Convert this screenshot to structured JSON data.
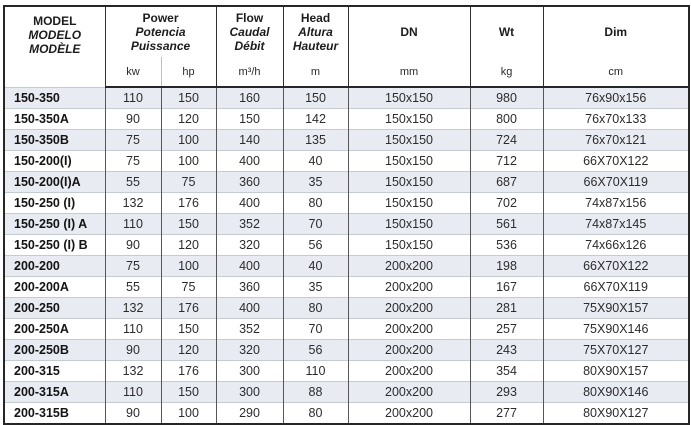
{
  "table": {
    "header": {
      "model": [
        "MODEL",
        "MODELO",
        "MODÈLE"
      ],
      "power": [
        "Power",
        "Potencia",
        "Puissance"
      ],
      "flow": [
        "Flow",
        "Caudal",
        "Débit"
      ],
      "head": [
        "Head",
        "Altura",
        "Hauteur"
      ],
      "dn": "DN",
      "wt": "Wt",
      "dim": "Dim",
      "units": {
        "kw": "kw",
        "hp": "hp",
        "flow": "m³/h",
        "head": "m",
        "dn": "mm",
        "wt": "kg",
        "dim": "cm"
      }
    },
    "columns": [
      "model",
      "kw",
      "hp",
      "flow",
      "head",
      "dn",
      "wt",
      "dim"
    ],
    "rows": [
      {
        "model": "150-350",
        "kw": "110",
        "hp": "150",
        "flow": "160",
        "head": "150",
        "dn": "150x150",
        "wt": "980",
        "dim": "76x90x156"
      },
      {
        "model": "150-350A",
        "kw": "90",
        "hp": "120",
        "flow": "150",
        "head": "142",
        "dn": "150x150",
        "wt": "800",
        "dim": "76x70x133"
      },
      {
        "model": "150-350B",
        "kw": "75",
        "hp": "100",
        "flow": "140",
        "head": "135",
        "dn": "150x150",
        "wt": "724",
        "dim": "76x70x121"
      },
      {
        "model": "150-200(I)",
        "kw": "75",
        "hp": "100",
        "flow": "400",
        "head": "40",
        "dn": "150x150",
        "wt": "712",
        "dim": "66X70X122"
      },
      {
        "model": "150-200(I)A",
        "kw": "55",
        "hp": "75",
        "flow": "360",
        "head": "35",
        "dn": "150x150",
        "wt": "687",
        "dim": "66X70X119"
      },
      {
        "model": "150-250 (I)",
        "kw": "132",
        "hp": "176",
        "flow": "400",
        "head": "80",
        "dn": "150x150",
        "wt": "702",
        "dim": "74x87x156"
      },
      {
        "model": "150-250 (I) A",
        "kw": "110",
        "hp": "150",
        "flow": "352",
        "head": "70",
        "dn": "150x150",
        "wt": "561",
        "dim": "74x87x145"
      },
      {
        "model": "150-250 (I) B",
        "kw": "90",
        "hp": "120",
        "flow": "320",
        "head": "56",
        "dn": "150x150",
        "wt": "536",
        "dim": "74x66x126"
      },
      {
        "model": "200-200",
        "kw": "75",
        "hp": "100",
        "flow": "400",
        "head": "40",
        "dn": "200x200",
        "wt": "198",
        "dim": "66X70X122"
      },
      {
        "model": "200-200A",
        "kw": "55",
        "hp": "75",
        "flow": "360",
        "head": "35",
        "dn": "200x200",
        "wt": "167",
        "dim": "66X70X119"
      },
      {
        "model": "200-250",
        "kw": "132",
        "hp": "176",
        "flow": "400",
        "head": "80",
        "dn": "200x200",
        "wt": "281",
        "dim": "75X90X157"
      },
      {
        "model": "200-250A",
        "kw": "110",
        "hp": "150",
        "flow": "352",
        "head": "70",
        "dn": "200x200",
        "wt": "257",
        "dim": "75X90X146"
      },
      {
        "model": "200-250B",
        "kw": "90",
        "hp": "120",
        "flow": "320",
        "head": "56",
        "dn": "200x200",
        "wt": "243",
        "dim": "75X70X127"
      },
      {
        "model": "200-315",
        "kw": "132",
        "hp": "176",
        "flow": "300",
        "head": "110",
        "dn": "200x200",
        "wt": "354",
        "dim": "80X90X157"
      },
      {
        "model": "200-315A",
        "kw": "110",
        "hp": "150",
        "flow": "300",
        "head": "88",
        "dn": "200x200",
        "wt": "293",
        "dim": "80X90X146"
      },
      {
        "model": "200-315B",
        "kw": "90",
        "hp": "100",
        "flow": "290",
        "head": "80",
        "dn": "200x200",
        "wt": "277",
        "dim": "80X90X127"
      }
    ]
  },
  "colors": {
    "row_shade": "#e9ebf2",
    "border_dark": "#262626",
    "border_mid": "#565656",
    "border_light": "#c6cad3",
    "unit_separator_light": "#b9bec8"
  }
}
